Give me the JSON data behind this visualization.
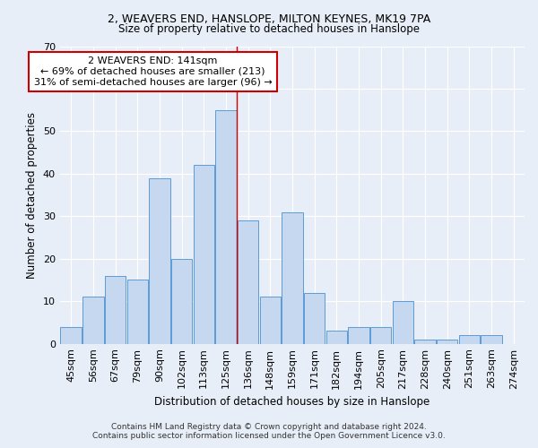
{
  "title": "2, WEAVERS END, HANSLOPE, MILTON KEYNES, MK19 7PA",
  "subtitle": "Size of property relative to detached houses in Hanslope",
  "xlabel": "Distribution of detached houses by size in Hanslope",
  "ylabel": "Number of detached properties",
  "footer_line1": "Contains HM Land Registry data © Crown copyright and database right 2024.",
  "footer_line2": "Contains public sector information licensed under the Open Government Licence v3.0.",
  "categories": [
    "45sqm",
    "56sqm",
    "67sqm",
    "79sqm",
    "90sqm",
    "102sqm",
    "113sqm",
    "125sqm",
    "136sqm",
    "148sqm",
    "159sqm",
    "171sqm",
    "182sqm",
    "194sqm",
    "205sqm",
    "217sqm",
    "228sqm",
    "240sqm",
    "251sqm",
    "263sqm",
    "274sqm"
  ],
  "values": [
    4,
    11,
    16,
    15,
    39,
    20,
    42,
    55,
    29,
    11,
    31,
    12,
    3,
    4,
    4,
    10,
    1,
    1,
    2,
    2,
    0
  ],
  "bar_color": "#c5d8f0",
  "bar_edge_color": "#5b9bd5",
  "background_color": "#e8eef7",
  "grid_color": "#ffffff",
  "annotation_line1": "2 WEAVERS END: 141sqm",
  "annotation_line2": "← 69% of detached houses are smaller (213)",
  "annotation_line3": "31% of semi-detached houses are larger (96) →",
  "vline_color": "#cc0000",
  "annotation_box_edgecolor": "#cc0000",
  "ylim": [
    0,
    70
  ],
  "yticks": [
    0,
    10,
    20,
    30,
    40,
    50,
    60,
    70
  ],
  "title_fontsize": 9,
  "subtitle_fontsize": 8.5,
  "ylabel_fontsize": 8.5,
  "xlabel_fontsize": 8.5,
  "tick_fontsize": 8,
  "annotation_fontsize": 8,
  "footer_fontsize": 6.5
}
